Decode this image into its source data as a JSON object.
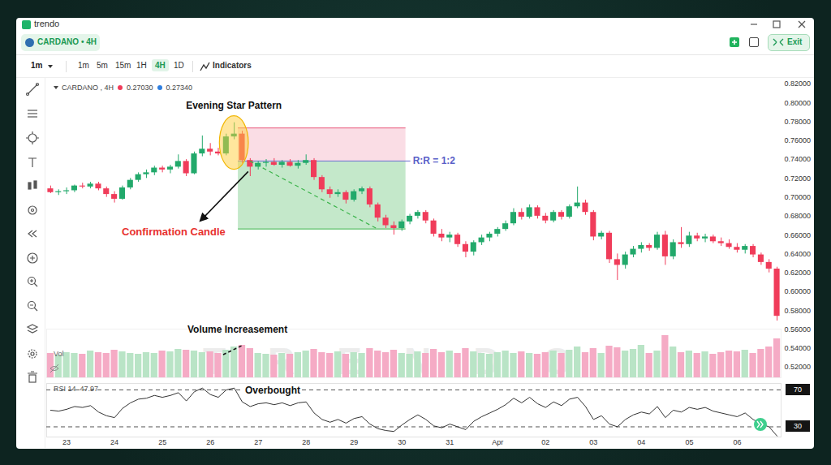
{
  "app": {
    "name": "trendo",
    "symbol": "CARDANO • 4H",
    "exit": "Exit",
    "interval_menu": "1m",
    "intervals": [
      "1m",
      "5m",
      "15m",
      "1H",
      "4H",
      "1D"
    ],
    "active_interval": "4H",
    "indicators": "Indicators",
    "watermark": "TRENDO"
  },
  "chart_data": [
    {
      "type": "candlestick",
      "title": "CARDANO , 4H",
      "header_values": [
        {
          "value": 0.2703,
          "label": "0.27030",
          "color": "#f03c5a"
        },
        {
          "value": 0.2734,
          "label": "0.27340",
          "color": "#2f7fe0"
        }
      ],
      "categories": [
        null,
        null,
        "23",
        null,
        null,
        null,
        null,
        null,
        "24",
        null,
        null,
        null,
        null,
        null,
        "25",
        null,
        null,
        null,
        null,
        null,
        "26",
        null,
        null,
        null,
        null,
        null,
        "27",
        null,
        null,
        null,
        null,
        null,
        "28",
        null,
        null,
        null,
        null,
        null,
        "29",
        null,
        null,
        null,
        null,
        null,
        "30",
        null,
        null,
        null,
        null,
        null,
        "31",
        null,
        null,
        null,
        null,
        null,
        "Apr",
        null,
        null,
        null,
        null,
        null,
        "02",
        null,
        null,
        null,
        null,
        null,
        "03",
        null,
        null,
        null,
        null,
        null,
        "04",
        null,
        null,
        null,
        null,
        null,
        "05",
        null,
        null,
        null,
        null,
        null,
        "06",
        null,
        null,
        null,
        null,
        null
      ],
      "open": [
        0.709,
        0.705,
        0.706,
        0.707,
        0.712,
        0.711,
        0.714,
        0.709,
        0.703,
        0.698,
        0.71,
        0.718,
        0.724,
        0.726,
        0.731,
        0.729,
        0.732,
        0.738,
        0.725,
        0.746,
        0.751,
        0.748,
        0.746,
        0.764,
        0.767,
        0.739,
        0.732,
        0.736,
        0.737,
        0.734,
        0.737,
        0.733,
        0.736,
        0.739,
        0.721,
        0.708,
        0.703,
        0.705,
        0.697,
        0.706,
        0.709,
        0.692,
        0.678,
        0.67,
        0.667,
        0.674,
        0.68,
        0.684,
        0.675,
        0.661,
        0.657,
        0.66,
        0.65,
        0.642,
        0.652,
        0.657,
        0.661,
        0.666,
        0.672,
        0.684,
        0.679,
        0.689,
        0.68,
        0.675,
        0.684,
        0.679,
        0.69,
        0.694,
        0.684,
        0.658,
        0.662,
        0.634,
        0.628,
        0.639,
        0.645,
        0.649,
        0.646,
        0.66,
        0.637,
        0.652,
        0.65,
        0.659,
        0.656,
        0.658,
        0.653,
        0.651,
        0.647,
        0.644,
        0.648,
        0.639,
        0.631,
        0.624
      ],
      "high": [
        0.712,
        0.708,
        0.71,
        0.713,
        0.715,
        0.716,
        0.716,
        0.711,
        0.706,
        0.712,
        0.72,
        0.726,
        0.729,
        0.733,
        0.733,
        0.734,
        0.745,
        0.74,
        0.748,
        0.765,
        0.757,
        0.752,
        0.767,
        0.779,
        0.77,
        0.741,
        0.738,
        0.74,
        0.741,
        0.739,
        0.74,
        0.739,
        0.745,
        0.741,
        0.723,
        0.711,
        0.708,
        0.707,
        0.708,
        0.711,
        0.711,
        0.694,
        0.681,
        0.674,
        0.676,
        0.682,
        0.686,
        0.686,
        0.677,
        0.666,
        0.663,
        0.662,
        0.653,
        0.654,
        0.66,
        0.663,
        0.668,
        0.675,
        0.688,
        0.688,
        0.692,
        0.691,
        0.683,
        0.686,
        0.686,
        0.692,
        0.711,
        0.697,
        0.686,
        0.664,
        0.664,
        0.64,
        0.642,
        0.648,
        0.652,
        0.651,
        0.663,
        0.664,
        0.655,
        0.668,
        0.663,
        0.662,
        0.661,
        0.66,
        0.657,
        0.655,
        0.651,
        0.65,
        0.65,
        0.641,
        0.634,
        0.626
      ],
      "low": [
        0.704,
        0.702,
        0.703,
        0.705,
        0.709,
        0.709,
        0.707,
        0.7,
        0.694,
        0.697,
        0.708,
        0.716,
        0.72,
        0.723,
        0.726,
        0.725,
        0.73,
        0.722,
        0.724,
        0.743,
        0.744,
        0.744,
        0.744,
        0.761,
        0.736,
        0.722,
        0.729,
        0.732,
        0.733,
        0.731,
        0.732,
        0.73,
        0.734,
        0.718,
        0.705,
        0.699,
        0.7,
        0.693,
        0.695,
        0.703,
        0.689,
        0.674,
        0.667,
        0.66,
        0.664,
        0.671,
        0.677,
        0.672,
        0.658,
        0.653,
        0.652,
        0.647,
        0.636,
        0.638,
        0.649,
        0.653,
        0.658,
        0.664,
        0.67,
        0.676,
        0.677,
        0.677,
        0.672,
        0.673,
        0.676,
        0.677,
        0.688,
        0.681,
        0.654,
        0.655,
        0.63,
        0.612,
        0.624,
        0.636,
        0.641,
        0.643,
        0.644,
        0.628,
        0.634,
        0.646,
        0.647,
        0.653,
        0.652,
        0.651,
        0.648,
        0.645,
        0.641,
        0.64,
        0.636,
        0.628,
        0.62,
        0.569
      ],
      "close": [
        0.705,
        0.706,
        0.707,
        0.712,
        0.711,
        0.714,
        0.709,
        0.703,
        0.698,
        0.71,
        0.718,
        0.724,
        0.726,
        0.731,
        0.729,
        0.732,
        0.738,
        0.725,
        0.746,
        0.751,
        0.748,
        0.746,
        0.764,
        0.767,
        0.739,
        0.732,
        0.736,
        0.737,
        0.734,
        0.737,
        0.733,
        0.736,
        0.739,
        0.721,
        0.708,
        0.703,
        0.705,
        0.697,
        0.706,
        0.709,
        0.692,
        0.678,
        0.67,
        0.667,
        0.674,
        0.68,
        0.684,
        0.675,
        0.661,
        0.657,
        0.66,
        0.65,
        0.642,
        0.652,
        0.657,
        0.661,
        0.666,
        0.672,
        0.684,
        0.679,
        0.689,
        0.68,
        0.675,
        0.684,
        0.679,
        0.69,
        0.694,
        0.684,
        0.658,
        0.662,
        0.634,
        0.628,
        0.639,
        0.645,
        0.649,
        0.646,
        0.66,
        0.637,
        0.652,
        0.65,
        0.659,
        0.656,
        0.658,
        0.653,
        0.651,
        0.647,
        0.644,
        0.648,
        0.639,
        0.631,
        0.624,
        0.574
      ],
      "color": {
        "up": "#22a96b",
        "down": "#f03c5a"
      },
      "ylim": [
        0.52,
        0.82
      ],
      "yticks": [
        {
          "value": 0.52,
          "label": "0.52000"
        },
        {
          "value": 0.54,
          "label": "0.54000"
        },
        {
          "value": 0.56,
          "label": "0.56000"
        },
        {
          "value": 0.58,
          "label": "0.58000"
        },
        {
          "value": 0.6,
          "label": "0.60000"
        },
        {
          "value": 0.62,
          "label": "0.62000"
        },
        {
          "value": 0.64,
          "label": "0.64000"
        },
        {
          "value": 0.66,
          "label": "0.66000"
        },
        {
          "value": 0.68,
          "label": "0.68000"
        },
        {
          "value": 0.7,
          "label": "0.70000"
        },
        {
          "value": 0.72,
          "label": "0.72000"
        },
        {
          "value": 0.74,
          "label": "0.74000"
        },
        {
          "value": 0.76,
          "label": "0.76000"
        },
        {
          "value": 0.78,
          "label": "0.78000"
        },
        {
          "value": 0.8,
          "label": "0.80000"
        },
        {
          "value": 0.82,
          "label": "0.82000"
        }
      ],
      "grid": false,
      "tick_labels": "y",
      "trade": {
        "stop": 0.773,
        "entry": 0.738,
        "target": 0.666
      },
      "annotations": {
        "pattern": "Evening Star Pattern",
        "confirmation": "Confirmation Candle",
        "risk_reward": "R:R = 1:2"
      }
    },
    {
      "type": "bar",
      "title": "Vol",
      "categories": [
        null,
        null,
        "23",
        null,
        null,
        null,
        null,
        null,
        "24",
        null,
        null,
        null,
        null,
        null,
        "25",
        null,
        null,
        null,
        null,
        null,
        "26",
        null,
        null,
        null,
        null,
        null,
        "27",
        null,
        null,
        null,
        null,
        null,
        "28",
        null,
        null,
        null,
        null,
        null,
        "29",
        null,
        null,
        null,
        null,
        null,
        "30",
        null,
        null,
        null,
        null,
        null,
        "31",
        null,
        null,
        null,
        null,
        null,
        "Apr",
        null,
        null,
        null,
        null,
        null,
        "02",
        null,
        null,
        null,
        null,
        null,
        "03",
        null,
        null,
        null,
        null,
        null,
        "04",
        null,
        null,
        null,
        null,
        null,
        "05",
        null,
        null,
        null,
        null,
        null,
        "06",
        null,
        null,
        null,
        null,
        null
      ],
      "values": [
        30,
        28,
        31,
        30,
        29,
        33,
        31,
        30,
        34,
        32,
        30,
        29,
        31,
        30,
        33,
        32,
        35,
        34,
        33,
        31,
        32,
        30,
        34,
        38,
        40,
        36,
        30,
        29,
        28,
        30,
        29,
        31,
        33,
        35,
        31,
        30,
        32,
        29,
        31,
        30,
        36,
        33,
        31,
        34,
        30,
        29,
        32,
        30,
        35,
        31,
        33,
        30,
        36,
        32,
        30,
        29,
        31,
        33,
        30,
        32,
        30,
        29,
        31,
        33,
        30,
        34,
        38,
        31,
        36,
        30,
        39,
        37,
        33,
        35,
        40,
        30,
        33,
        52,
        38,
        31,
        33,
        30,
        32,
        29,
        31,
        33,
        32,
        34,
        30,
        35,
        38,
        48
      ],
      "color": {
        "up": "#b9e4c6",
        "down": "#f5abc5"
      },
      "ylim": [
        0,
        60
      ],
      "tick_labels": false,
      "annotations": {
        "volume": "Volume Increasement"
      }
    },
    {
      "type": "line",
      "categories": [
        null,
        null,
        "23",
        null,
        null,
        null,
        null,
        null,
        "24",
        null,
        null,
        null,
        null,
        null,
        "25",
        null,
        null,
        null,
        null,
        null,
        "26",
        null,
        null,
        null,
        null,
        null,
        "27",
        null,
        null,
        null,
        null,
        null,
        "28",
        null,
        null,
        null,
        null,
        null,
        "29",
        null,
        null,
        null,
        null,
        null,
        "30",
        null,
        null,
        null,
        null,
        null,
        "31",
        null,
        null,
        null,
        null,
        null,
        "Apr",
        null,
        null,
        null,
        null,
        null,
        "02",
        null,
        null,
        null,
        null,
        null,
        "03",
        null,
        null,
        null,
        null,
        null,
        "04",
        null,
        null,
        null,
        null,
        null,
        "05",
        null,
        null,
        null,
        null,
        null,
        "06",
        null,
        null,
        null,
        null,
        null
      ],
      "series": [
        {
          "name": "RSI 14",
          "color": "#333333",
          "values": [
            48,
            47,
            49,
            52,
            51,
            53,
            46,
            42,
            40,
            50,
            56,
            60,
            61,
            64,
            62,
            64,
            67,
            58,
            68,
            72,
            65,
            62,
            70,
            72,
            57,
            52,
            55,
            56,
            54,
            56,
            53,
            56,
            57,
            45,
            38,
            35,
            38,
            34,
            39,
            41,
            33,
            28,
            26,
            25,
            32,
            38,
            43,
            38,
            31,
            29,
            33,
            30,
            27,
            36,
            41,
            45,
            49,
            54,
            61,
            56,
            62,
            55,
            51,
            57,
            53,
            60,
            62,
            52,
            38,
            42,
            33,
            30,
            38,
            43,
            46,
            44,
            52,
            40,
            48,
            46,
            51,
            49,
            51,
            47,
            45,
            43,
            41,
            45,
            38,
            33,
            30,
            20
          ]
        }
      ],
      "header_value": 47.97,
      "ylim": [
        19,
        77
      ],
      "yticks": [
        30,
        70
      ],
      "grid": false,
      "tick_labels": true,
      "annotations": {
        "rsi": "Overbought"
      }
    }
  ]
}
